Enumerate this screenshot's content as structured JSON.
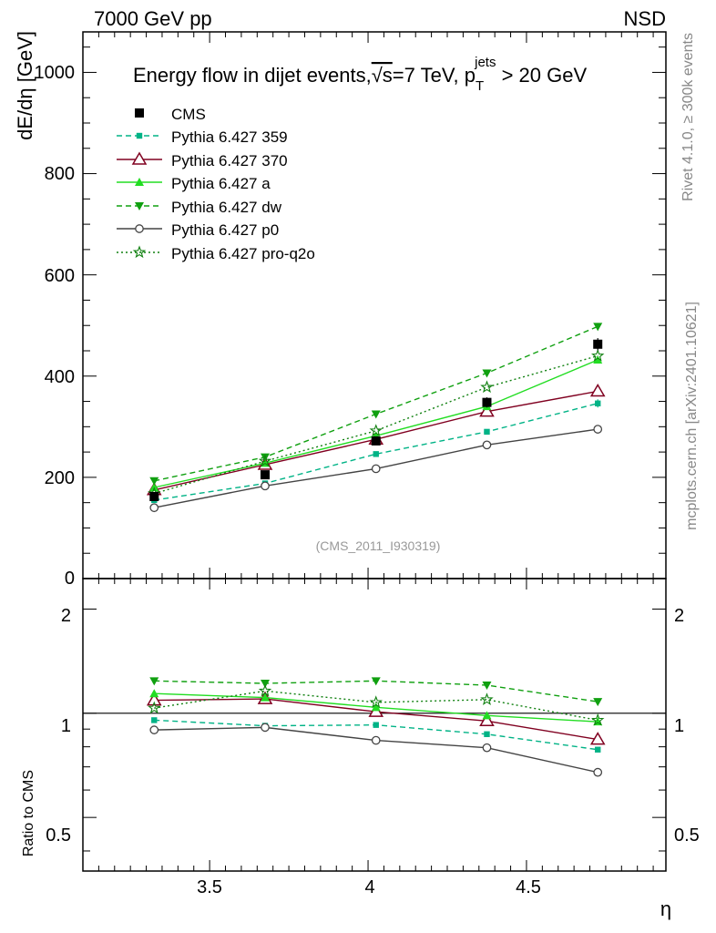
{
  "chart_data": [
    {
      "type": "line",
      "header_left": "7000 GeV pp",
      "header_right": "NSD",
      "title_prefix": "Energy flow in dijet events,",
      "title_sqrt": "√s",
      "title_mid": "=7 TeV, p",
      "title_sup": "jets",
      "title_sub": "T",
      "title_suffix": " > 20 GeV",
      "ylabel": "dE/dη [GeV]",
      "xlabel": "η",
      "analysis_tag": "(CMS_2011_I930319)",
      "side_label_top": "Rivet 4.1.0, ≥ 300k events",
      "side_label_bottom": "mcplots.cern.ch [arXiv:2401.10621]",
      "ylim": [
        0,
        1080
      ],
      "xlim": [
        3.1,
        4.94
      ],
      "ytick_labels": [
        "0",
        "200",
        "400",
        "600",
        "800",
        "1000"
      ],
      "x": [
        3.325,
        3.675,
        4.025,
        4.375,
        4.725
      ],
      "series": [
        {
          "name": "CMS",
          "color": "#000000",
          "marker": "square",
          "dash": "none",
          "values": [
            162,
            205,
            272,
            348,
            463
          ],
          "errors": [
            6,
            7,
            8,
            10,
            12
          ]
        },
        {
          "name": "Pythia 6.427 359",
          "color": "#00b386",
          "marker": "small-square",
          "dash": "dashed",
          "values": [
            155,
            188,
            246,
            290,
            346
          ],
          "errors": [
            2,
            2,
            3,
            4,
            8
          ]
        },
        {
          "name": "Pythia 6.427 370",
          "color": "#800020",
          "marker": "open-triangle",
          "dash": "solid",
          "values": [
            175,
            225,
            275,
            330,
            370
          ],
          "errors": [
            0,
            0,
            0,
            0,
            0
          ]
        },
        {
          "name": "Pythia 6.427 a",
          "color": "#22dd22",
          "marker": "filled-triangle",
          "dash": "solid",
          "values": [
            180,
            228,
            282,
            340,
            432
          ],
          "errors": [
            0,
            0,
            0,
            0,
            0
          ]
        },
        {
          "name": "Pythia 6.427 dw",
          "color": "#10a010",
          "marker": "down-triangle",
          "dash": "dashed",
          "values": [
            193,
            240,
            325,
            406,
            498
          ],
          "errors": [
            0,
            0,
            0,
            0,
            7
          ]
        },
        {
          "name": "Pythia 6.427 p0",
          "color": "#444444",
          "marker": "open-circle",
          "dash": "solid",
          "values": [
            140,
            183,
            217,
            264,
            295
          ],
          "errors": [
            0,
            0,
            0,
            0,
            0
          ]
        },
        {
          "name": "Pythia 6.427 pro-q2o",
          "color": "#108010",
          "marker": "star",
          "dash": "dotted",
          "values": [
            168,
            232,
            292,
            378,
            440
          ],
          "errors": [
            0,
            0,
            0,
            0,
            0
          ]
        }
      ]
    },
    {
      "type": "line",
      "ylabel": "Ratio to CMS",
      "ylim": [
        0.35,
        2.45
      ],
      "ytick_labels": [
        "0.5",
        "1",
        "2"
      ],
      "xtick_labels": [
        "3.5",
        "4",
        "4.5"
      ],
      "reference": 1,
      "x": [
        3.325,
        3.675,
        4.025,
        4.375,
        4.725
      ],
      "series": [
        {
          "name": "Pythia 6.427 359",
          "values": [
            0.955,
            0.92,
            0.925,
            0.87,
            0.785
          ]
        },
        {
          "name": "Pythia 6.427 370",
          "values": [
            1.09,
            1.1,
            1.01,
            0.95,
            0.84
          ]
        },
        {
          "name": "Pythia 6.427 a",
          "values": [
            1.14,
            1.11,
            1.04,
            0.985,
            0.945
          ]
        },
        {
          "name": "Pythia 6.427 dw",
          "values": [
            1.24,
            1.22,
            1.24,
            1.205,
            1.08
          ]
        },
        {
          "name": "Pythia 6.427 p0",
          "values": [
            0.895,
            0.91,
            0.835,
            0.795,
            0.675
          ]
        },
        {
          "name": "Pythia 6.427 pro-q2o",
          "values": [
            1.035,
            1.16,
            1.075,
            1.095,
            0.955
          ]
        }
      ]
    }
  ]
}
